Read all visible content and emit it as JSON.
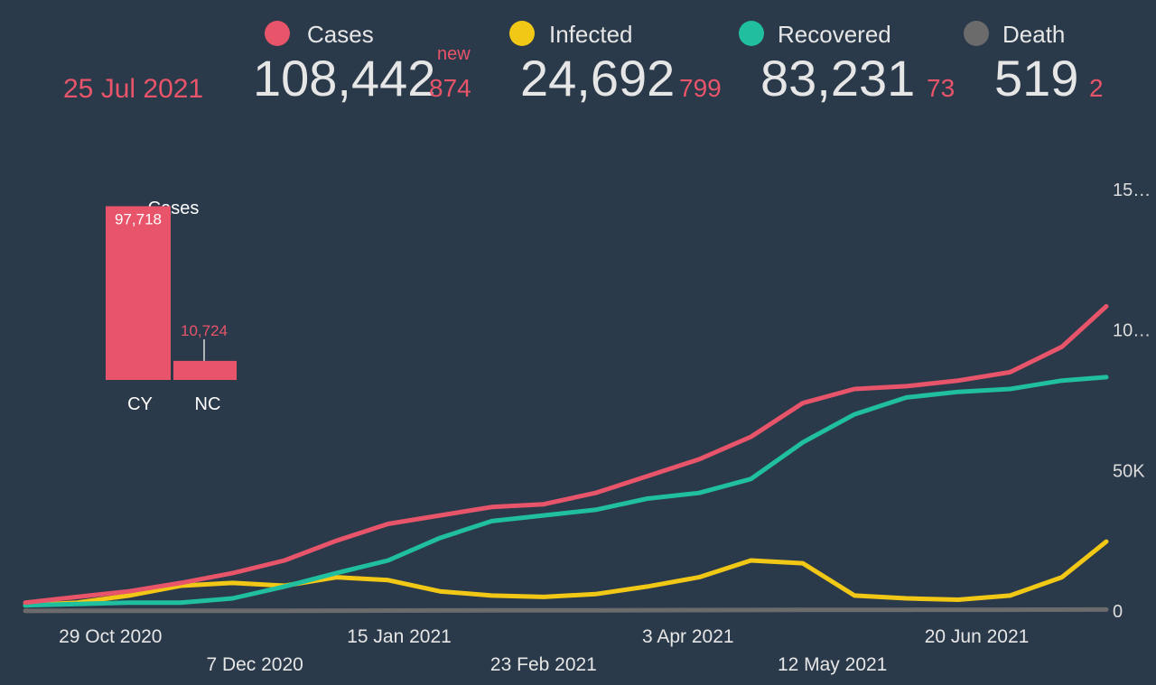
{
  "header": {
    "date": "25 Jul 2021",
    "new_label": "new",
    "stats": [
      {
        "total": "108,442",
        "new": "874"
      },
      {
        "total": "24,692",
        "new": "799"
      },
      {
        "total": "83,231",
        "new": "73"
      },
      {
        "total": "519",
        "new": "2"
      }
    ]
  },
  "chart_data": [
    {
      "type": "bar",
      "title": "Cases",
      "categories": [
        "CY",
        "NC"
      ],
      "values": [
        97718,
        10724
      ],
      "value_labels": [
        "97,718",
        "10,724"
      ],
      "color": "#e8546a",
      "ylim": [
        0,
        100000
      ]
    },
    {
      "type": "line",
      "x": [
        "2020-10-06",
        "2020-10-20",
        "2020-11-03",
        "2020-11-17",
        "2020-12-01",
        "2020-12-15",
        "2020-12-29",
        "2021-01-12",
        "2021-01-26",
        "2021-02-09",
        "2021-02-23",
        "2021-03-09",
        "2021-03-23",
        "2021-04-06",
        "2021-04-20",
        "2021-05-04",
        "2021-05-18",
        "2021-06-01",
        "2021-06-15",
        "2021-06-29",
        "2021-07-13",
        "2021-07-25"
      ],
      "xlim": [
        "2020-10-06",
        "2021-07-25"
      ],
      "xticks": [
        {
          "value": "2020-10-29",
          "label": "29 Oct 2020"
        },
        {
          "value": "2020-12-07",
          "label": "7 Dec 2020"
        },
        {
          "value": "2021-01-15",
          "label": "15 Jan 2021"
        },
        {
          "value": "2021-02-23",
          "label": "23 Feb 2021"
        },
        {
          "value": "2021-04-03",
          "label": "3 Apr 2021"
        },
        {
          "value": "2021-05-12",
          "label": "12 May 2021"
        },
        {
          "value": "2021-06-20",
          "label": "20 Jun 2021"
        }
      ],
      "ylim": [
        0,
        150000
      ],
      "yticks": [
        0,
        {
          "value": 50000,
          "label": "50K"
        },
        {
          "value": 100000,
          "label": "10…"
        },
        {
          "value": 150000,
          "label": "15…"
        }
      ],
      "grid": false,
      "series": [
        {
          "name": "Cases",
          "color": "#e8546a",
          "values": [
            3000,
            5000,
            7000,
            10000,
            13500,
            18000,
            25000,
            31000,
            34000,
            37000,
            38000,
            42000,
            48000,
            54000,
            62000,
            74000,
            79000,
            80000,
            82000,
            85000,
            94000,
            108442
          ]
        },
        {
          "name": "Infected",
          "color": "#f2c816",
          "values": [
            2000,
            3000,
            5500,
            9000,
            10000,
            9000,
            12000,
            11000,
            7000,
            5500,
            5000,
            6000,
            8700,
            12000,
            18000,
            17000,
            5500,
            4500,
            4000,
            5500,
            12000,
            24692
          ]
        },
        {
          "name": "Recovered",
          "color": "#1fbf9f",
          "values": [
            2000,
            2500,
            3000,
            3000,
            4500,
            8700,
            13500,
            18000,
            26000,
            32000,
            34000,
            36000,
            40000,
            42000,
            47000,
            60000,
            70000,
            76000,
            78000,
            79000,
            82000,
            83231
          ]
        },
        {
          "name": "Death",
          "color": "#6b6b6b",
          "values": [
            30,
            50,
            60,
            70,
            90,
            110,
            140,
            170,
            200,
            230,
            250,
            270,
            290,
            320,
            350,
            380,
            400,
            420,
            440,
            460,
            490,
            519
          ]
        }
      ]
    }
  ]
}
